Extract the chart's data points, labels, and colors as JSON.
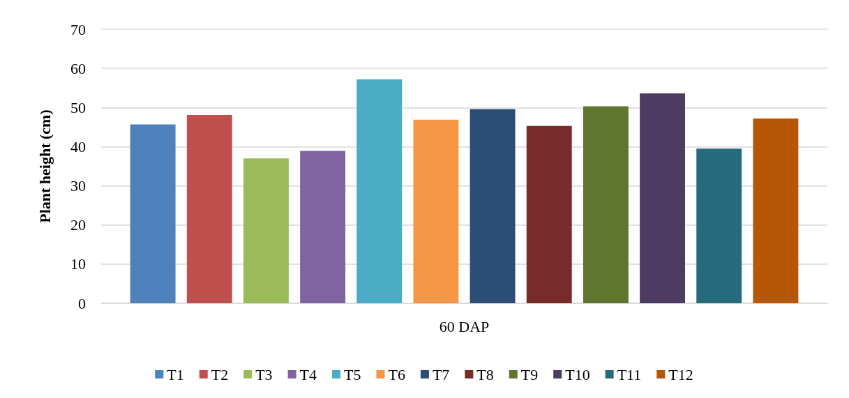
{
  "chart_data": {
    "type": "bar",
    "ylabel": "Plant height (cm)",
    "categories": [
      "60 DAP"
    ],
    "series": [
      {
        "name": "T1",
        "color": "#4f81bd",
        "values": [
          45.7
        ]
      },
      {
        "name": "T2",
        "color": "#c0504d",
        "values": [
          48.1
        ]
      },
      {
        "name": "T3",
        "color": "#9bbb59",
        "values": [
          37.0
        ]
      },
      {
        "name": "T4",
        "color": "#8064a2",
        "values": [
          38.9
        ]
      },
      {
        "name": "T5",
        "color": "#4bacc6",
        "values": [
          57.2
        ]
      },
      {
        "name": "T6",
        "color": "#f79646",
        "values": [
          46.9
        ]
      },
      {
        "name": "T7",
        "color": "#2c4d75",
        "values": [
          49.6
        ]
      },
      {
        "name": "T8",
        "color": "#772c2a",
        "values": [
          45.3
        ]
      },
      {
        "name": "T9",
        "color": "#5f7530",
        "values": [
          50.3
        ]
      },
      {
        "name": "T10",
        "color": "#4d3b62",
        "values": [
          53.6
        ]
      },
      {
        "name": "T11",
        "color": "#276a7c",
        "values": [
          39.5
        ]
      },
      {
        "name": "T12",
        "color": "#b65708",
        "values": [
          47.2
        ]
      }
    ],
    "ylim": [
      0,
      70
    ],
    "yticks": [
      0,
      10,
      20,
      30,
      40,
      50,
      60,
      70
    ],
    "grid": "y",
    "legend": "bottom"
  }
}
